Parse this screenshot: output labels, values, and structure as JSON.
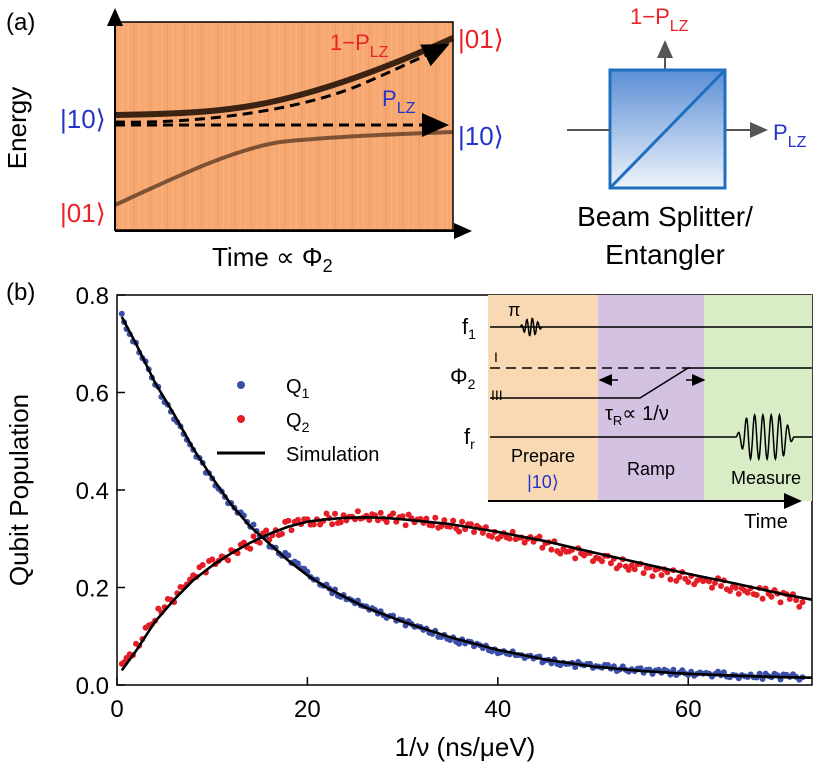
{
  "colors": {
    "red": "#e8232a",
    "blue": "#2434c8",
    "dot_blue": "#3b4fa8",
    "dot_red": "#e41e26",
    "heat_bg": "#f7a870",
    "splitter_top": "#5b8fd6",
    "splitter_bottom": "#eef3fb",
    "prepare_bg": "#f9d9b3",
    "ramp_bg": "#d4c2e3",
    "measure_bg": "#d8ecc6",
    "curve": "#000000"
  },
  "panel_a": {
    "tag": "(a)",
    "y_axis_label": "Energy",
    "x_axis_label": "Time ∝ Φ",
    "x_axis_label_sub": "2",
    "state_10": "|10⟩",
    "state_01": "|01⟩",
    "one_minus_p": "1−P",
    "p": "P",
    "lz_sub": "LZ"
  },
  "splitter": {
    "top_label": "1−P",
    "right_label": "P",
    "sub": "LZ",
    "caption_line1": "Beam Splitter/",
    "caption_line2": "Entangler"
  },
  "panel_b": {
    "tag": "(b)",
    "inset": {
      "f1": "f",
      "f1_sub": "1",
      "pi": "π",
      "phi2": "Φ",
      "phi2_sub": "2",
      "level_I": "I",
      "level_III": "III",
      "tau_pre": "τ",
      "tau_sub": "R",
      "tau_post": "∝ 1/ν",
      "fr": "f",
      "fr_sub": "r",
      "prepare": "Prepare",
      "prepare_state": "|10⟩",
      "ramp": "Ramp",
      "measure": "Measure",
      "time": "Time"
    }
  },
  "chart_data": {
    "type": "scatter",
    "title": "",
    "xlabel": "1/ν (ns/μeV)",
    "ylabel": "Qubit Population",
    "xlim": [
      0,
      73
    ],
    "ylim": [
      0,
      0.8
    ],
    "x_ticks": [
      0,
      20,
      40,
      60
    ],
    "x_tick_labels": [
      "0",
      "20",
      "40",
      "60"
    ],
    "y_ticks": [
      0,
      0.2,
      0.4,
      0.6,
      0.8
    ],
    "y_tick_labels": [
      "0.0",
      "0.2",
      "0.4",
      "0.6",
      "0.8"
    ],
    "legend": {
      "placement": "center",
      "entries": [
        {
          "label": "Q",
          "sub": "1",
          "kind": "dot",
          "color": "#3b4fa8"
        },
        {
          "label": "Q",
          "sub": "2",
          "kind": "dot",
          "color": "#e41e26"
        },
        {
          "label": "Simulation",
          "kind": "line",
          "color": "#000000"
        }
      ]
    },
    "series": [
      {
        "name": "Q1",
        "kind": "scatter",
        "color": "#3b4fa8",
        "x": [
          0.5,
          1,
          2,
          3,
          4,
          5,
          6,
          8,
          10,
          12,
          14,
          16,
          18,
          20,
          22,
          25,
          28,
          30,
          35,
          40,
          45,
          50,
          55,
          60,
          65,
          70,
          72
        ],
        "y": [
          0.76,
          0.73,
          0.7,
          0.66,
          0.62,
          0.58,
          0.55,
          0.48,
          0.42,
          0.37,
          0.33,
          0.29,
          0.26,
          0.23,
          0.2,
          0.17,
          0.145,
          0.13,
          0.095,
          0.07,
          0.05,
          0.038,
          0.03,
          0.025,
          0.02,
          0.017,
          0.016
        ]
      },
      {
        "name": "Q2",
        "kind": "scatter",
        "color": "#e41e26",
        "x": [
          0.5,
          1,
          2,
          3,
          4,
          5,
          6,
          8,
          10,
          12,
          14,
          16,
          18,
          20,
          22,
          25,
          28,
          30,
          35,
          40,
          45,
          50,
          55,
          60,
          65,
          70,
          72
        ],
        "y": [
          0.04,
          0.055,
          0.08,
          0.11,
          0.14,
          0.16,
          0.18,
          0.22,
          0.25,
          0.27,
          0.29,
          0.31,
          0.325,
          0.335,
          0.34,
          0.345,
          0.345,
          0.34,
          0.33,
          0.31,
          0.29,
          0.26,
          0.24,
          0.22,
          0.2,
          0.18,
          0.17
        ]
      },
      {
        "name": "Simulation Q1",
        "kind": "line",
        "color": "#000000",
        "x": [
          0.5,
          2,
          4,
          6,
          8,
          10,
          12,
          14,
          16,
          18,
          20,
          22,
          24,
          26,
          28,
          30,
          35,
          40,
          45,
          50,
          55,
          60,
          65,
          70,
          73
        ],
        "y": [
          0.755,
          0.7,
          0.62,
          0.555,
          0.485,
          0.425,
          0.37,
          0.325,
          0.29,
          0.255,
          0.225,
          0.2,
          0.18,
          0.16,
          0.145,
          0.13,
          0.098,
          0.072,
          0.052,
          0.038,
          0.029,
          0.023,
          0.019,
          0.016,
          0.015
        ]
      },
      {
        "name": "Simulation Q2",
        "kind": "line",
        "color": "#000000",
        "x": [
          0.5,
          2,
          4,
          6,
          8,
          10,
          12,
          14,
          16,
          18,
          20,
          22,
          24,
          26,
          28,
          30,
          35,
          40,
          45,
          50,
          55,
          60,
          65,
          70,
          73
        ],
        "y": [
          0.03,
          0.07,
          0.13,
          0.175,
          0.215,
          0.245,
          0.27,
          0.292,
          0.31,
          0.325,
          0.335,
          0.34,
          0.343,
          0.344,
          0.343,
          0.34,
          0.33,
          0.314,
          0.295,
          0.272,
          0.25,
          0.228,
          0.208,
          0.186,
          0.175
        ]
      }
    ]
  }
}
